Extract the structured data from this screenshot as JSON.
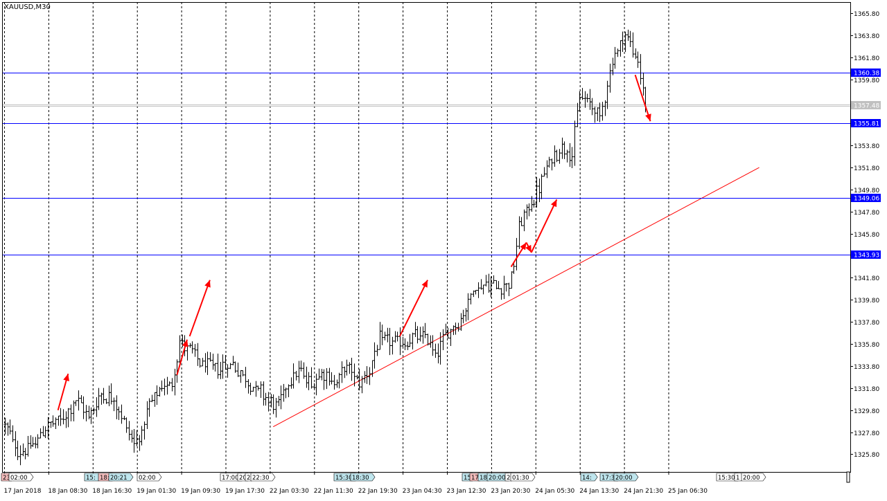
{
  "window": {
    "symbol_label": "XAUUSD,M30"
  },
  "colors": {
    "background": "#ffffff",
    "frame": "#000000",
    "bars": "#000000",
    "grid": "#000000",
    "hline": "#0000ff",
    "hline_tag_bg": "#0000ff",
    "hline_tag_text": "#ffffff",
    "bid_line": "#c0c0c0",
    "trendline": "#ff0000",
    "arrows": "#ff0000",
    "event_blue_bg": "#bfe6ee",
    "event_red_bg": "#f4bcbc",
    "event_white_bg": "#ffffff"
  },
  "chart_data": {
    "type": "candlestick",
    "symbol": "XAUUSD",
    "timeframe": "M30",
    "ylim": [
      1324.2,
      1366.8
    ],
    "y_ticks": [
      "1365.80",
      "1363.80",
      "1361.80",
      "1359.80",
      "1353.80",
      "1351.80",
      "1349.80",
      "1347.80",
      "1345.80",
      "1341.80",
      "1339.80",
      "1337.80",
      "1335.80",
      "1333.80",
      "1331.80",
      "1329.80",
      "1327.80",
      "1325.80"
    ],
    "x_ticks": [
      "17 Jan 2018",
      "18 Jan 08:30",
      "18 Jan 16:30",
      "19 Jan 01:30",
      "19 Jan 09:30",
      "19 Jan 17:30",
      "22 Jan 03:30",
      "22 Jan 11:30",
      "22 Jan 19:30",
      "23 Jan 04:30",
      "23 Jan 12:30",
      "23 Jan 20:30",
      "24 Jan 05:30",
      "24 Jan 13:30",
      "24 Jan 21:30",
      "25 Jan 06:30"
    ],
    "bar_count": 310,
    "grid": "vertical dashed",
    "price_series": {
      "knots": [
        [
          0,
          1328.5
        ],
        [
          5,
          1326
        ],
        [
          11,
          1326.5
        ],
        [
          16,
          1328.3
        ],
        [
          23,
          1329.0
        ],
        [
          28,
          1330.8
        ],
        [
          33,
          1329.2
        ],
        [
          38,
          1331.3
        ],
        [
          43,
          1330.8
        ],
        [
          48,
          1328.2
        ],
        [
          51,
          1326.8
        ],
        [
          54,
          1327.8
        ],
        [
          57,
          1330.2
        ],
        [
          62,
          1331.8
        ],
        [
          66,
          1332.3
        ],
        [
          69,
          1336.0
        ],
        [
          73,
          1335.2
        ],
        [
          78,
          1333.9
        ],
        [
          84,
          1333.6
        ],
        [
          90,
          1334.0
        ],
        [
          96,
          1332.3
        ],
        [
          101,
          1331.5
        ],
        [
          106,
          1330.2
        ],
        [
          108,
          1330.3
        ],
        [
          112,
          1332.5
        ],
        [
          116,
          1333.4
        ],
        [
          121,
          1332.1
        ],
        [
          125,
          1333.4
        ],
        [
          130,
          1332.2
        ],
        [
          135,
          1333.8
        ],
        [
          140,
          1332.3
        ],
        [
          144,
          1333.5
        ],
        [
          148,
          1336.2
        ],
        [
          153,
          1336.0
        ],
        [
          158,
          1335.8
        ],
        [
          162,
          1336.5
        ],
        [
          167,
          1336.3
        ],
        [
          170,
          1334.7
        ],
        [
          172,
          1335.8
        ],
        [
          176,
          1337.2
        ],
        [
          180,
          1338.0
        ],
        [
          185,
          1340.8
        ],
        [
          190,
          1341.2
        ],
        [
          195,
          1341.0
        ],
        [
          199,
          1341.3
        ],
        [
          201,
          1342.8
        ],
        [
          203,
          1346.5
        ],
        [
          210,
          1349.5
        ],
        [
          215,
          1352.2
        ],
        [
          220,
          1353.8
        ],
        [
          224,
          1353.0
        ],
        [
          227,
          1358.3
        ],
        [
          232,
          1357.4
        ],
        [
          235,
          1356.3
        ],
        [
          240,
          1361.5
        ],
        [
          245,
          1364.0
        ],
        [
          250,
          1361.3
        ],
        [
          253,
          1357.5
        ]
      ]
    },
    "horizontal_lines": [
      {
        "price": 1360.38,
        "label": "1360.38"
      },
      {
        "price": 1355.81,
        "label": "1355.81"
      },
      {
        "price": 1349.06,
        "label": "1349.06"
      },
      {
        "price": 1343.93,
        "label": "1343.93"
      }
    ],
    "bid": {
      "price": 1357.48,
      "label": "1357.48"
    },
    "trendline": {
      "from": [
        106,
        1328.3
      ],
      "to": [
        298,
        1351.8
      ]
    },
    "arrows": [
      {
        "from": [
          21,
          1329.8
        ],
        "to": [
          25,
          1333.1
        ]
      },
      {
        "from": [
          68,
          1333.0
        ],
        "to": [
          72,
          1336.2
        ]
      },
      {
        "from": [
          73,
          1336.5
        ],
        "to": [
          81,
          1341.6
        ]
      },
      {
        "from": [
          156,
          1336.5
        ],
        "to": [
          167,
          1341.6
        ]
      },
      {
        "from": [
          200,
          1342.8
        ],
        "to": [
          206,
          1345.0
        ]
      },
      {
        "from": [
          206,
          1345.0
        ],
        "to": [
          208,
          1344.1
        ]
      },
      {
        "from": [
          208,
          1344.1
        ],
        "to": [
          218,
          1348.9
        ]
      },
      {
        "from": [
          249,
          1360.2
        ],
        "to": [
          255,
          1356.0
        ]
      }
    ],
    "event_tags": [
      {
        "text": "23",
        "style": "red",
        "x": 2
      },
      {
        "text": "02:00",
        "style": "white",
        "x": 13
      },
      {
        "text": "15:",
        "style": "blue",
        "x": 122
      },
      {
        "text": "18:",
        "style": "red",
        "x": 142
      },
      {
        "text": "20:21",
        "style": "blue",
        "x": 157
      },
      {
        "text": "02:00",
        "style": "white",
        "x": 198
      },
      {
        "text": "17:00",
        "style": "white",
        "x": 318
      },
      {
        "text": "20",
        "style": "white",
        "x": 343
      },
      {
        "text": "2",
        "style": "white",
        "x": 354
      },
      {
        "text": "22:30",
        "style": "white",
        "x": 362
      },
      {
        "text": "15:30",
        "style": "blue",
        "x": 482
      },
      {
        "text": "18:30",
        "style": "blue",
        "x": 506
      },
      {
        "text": "15",
        "style": "blue",
        "x": 667
      },
      {
        "text": "17",
        "style": "red",
        "x": 678
      },
      {
        "text": "18",
        "style": "blue",
        "x": 690
      },
      {
        "text": "20:00",
        "style": "blue",
        "x": 703
      },
      {
        "text": "2",
        "style": "white",
        "x": 729
      },
      {
        "text": "01:30",
        "style": "white",
        "x": 737
      },
      {
        "text": "14:",
        "style": "blue",
        "x": 838
      },
      {
        "text": "17:3",
        "style": "blue",
        "x": 866
      },
      {
        "text": "20:00",
        "style": "blue",
        "x": 886
      },
      {
        "text": "15:30",
        "style": "white",
        "x": 1034
      },
      {
        "text": "1",
        "style": "white",
        "x": 1060
      },
      {
        "text": "20:00",
        "style": "white",
        "x": 1070
      }
    ]
  }
}
